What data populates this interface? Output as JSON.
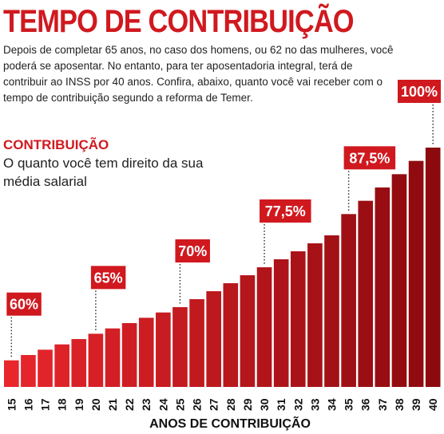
{
  "title": "TEMPO DE CONTRIBUIÇÃO",
  "intro": "Depois de completar 65 anos, no caso dos homens, ou 62 no das mulheres, você poderá se aposentar. No entanto, para ter aposentadoria integral, terá de contribuir ao INSS por 40 anos. Confira, abaixo, quanto você vai receber com o tempo de contribuição segundo a reforma de Temer.",
  "section_title": "CONTRIBUIÇÃO",
  "section_subtitle": "O quanto você tem direito da sua média salarial",
  "colors": {
    "accent": "#d0191f",
    "bar_light": "#e8262c",
    "bar_dark": "#8c0a0e",
    "text": "#222222"
  },
  "chart_data": {
    "type": "bar",
    "categories": [
      "15",
      "16",
      "17",
      "18",
      "19",
      "20",
      "21",
      "22",
      "23",
      "24",
      "25",
      "26",
      "27",
      "28",
      "29",
      "30",
      "31",
      "32",
      "33",
      "34",
      "35",
      "36",
      "37",
      "38",
      "39",
      "40"
    ],
    "values": [
      60,
      61,
      62,
      63,
      64,
      65,
      66,
      67,
      68,
      69,
      70,
      71.5,
      73,
      74.5,
      76,
      77.5,
      79,
      80.5,
      82,
      83.5,
      87.5,
      90,
      92.5,
      95,
      97.5,
      100
    ],
    "xlabel": "ANOS DE CONTRIBUIÇÃO",
    "ylabel": "",
    "ylim": [
      55,
      100
    ],
    "grid": false,
    "annotations": [
      {
        "x": "15",
        "label": "60%"
      },
      {
        "x": "20",
        "label": "65%"
      },
      {
        "x": "25",
        "label": "70%"
      },
      {
        "x": "30",
        "label": "77,5%"
      },
      {
        "x": "35",
        "label": "87,5%"
      },
      {
        "x": "40",
        "label": "100%"
      }
    ]
  }
}
